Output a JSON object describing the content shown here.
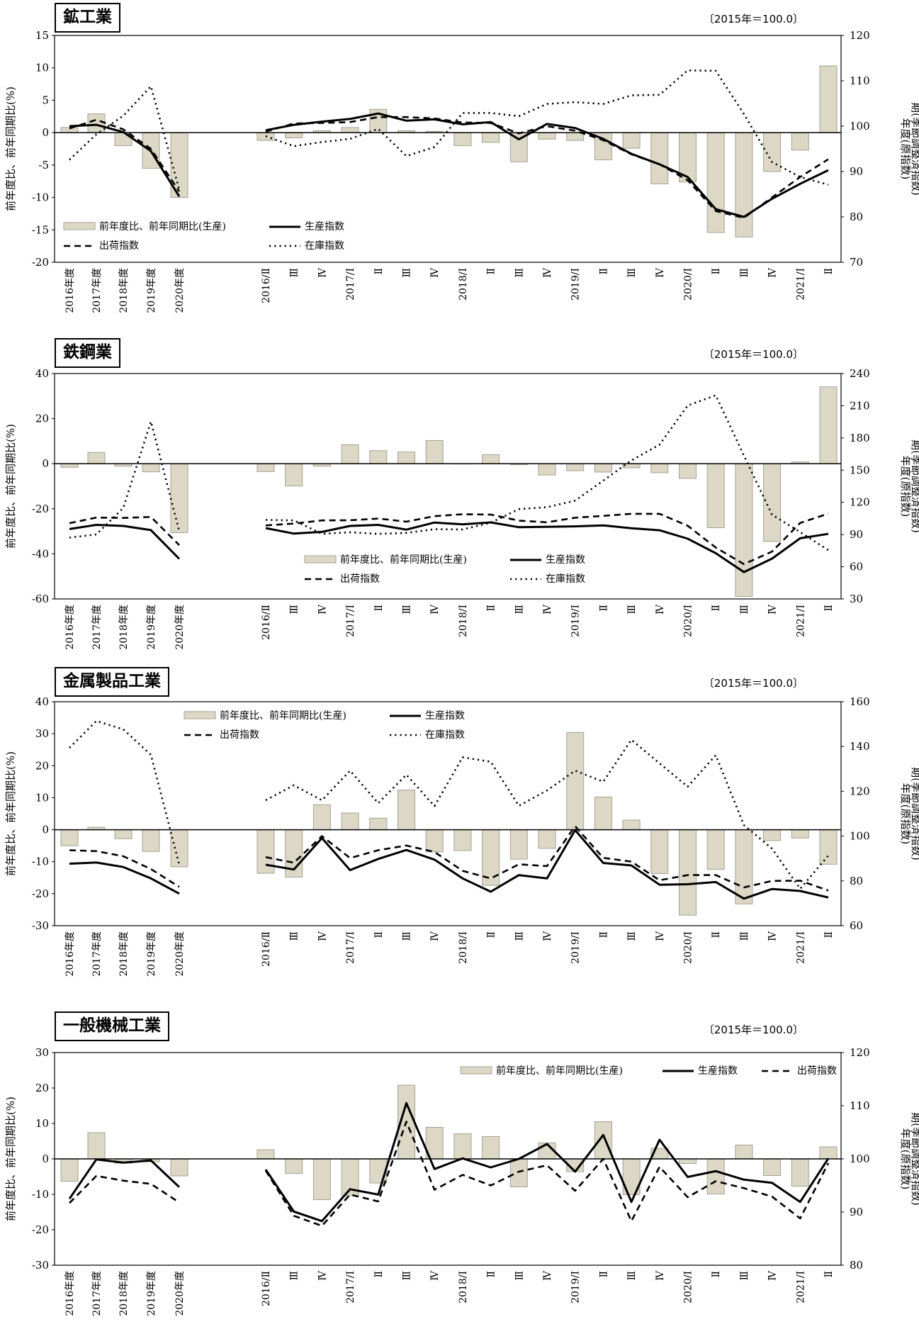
{
  "base_note": "〔2015年＝100.0〕",
  "legend_labels": {
    "bar": "前年度比、前年同期比(生産)",
    "production": "生産指数",
    "shipment": "出荷指数",
    "inventory": "在庫指数"
  },
  "axis_labels": {
    "left": "前年度比、前年同期比(%)",
    "right_line1": "年度(原指数)",
    "right_line2": "期(季節調整済指数)"
  },
  "categories_annual": [
    "2016年度",
    "2017年度",
    "2018年度",
    "2019年度",
    "2020年度"
  ],
  "categories_quarterly": [
    "2016/Ⅱ",
    "Ⅲ",
    "Ⅳ",
    "2017/Ⅰ",
    "Ⅱ",
    "Ⅲ",
    "Ⅳ",
    "2018/Ⅰ",
    "Ⅱ",
    "Ⅲ",
    "Ⅳ",
    "2019/Ⅰ",
    "Ⅱ",
    "Ⅲ",
    "Ⅳ",
    "2020/Ⅰ",
    "Ⅱ",
    "Ⅲ",
    "Ⅳ",
    "2021/Ⅰ",
    "Ⅱ"
  ],
  "chart_data": [
    {
      "type": "bar",
      "title": "鉱工業",
      "left_ylim": [
        -20,
        15
      ],
      "left_ticks": [
        -20,
        -15,
        -10,
        -5,
        0,
        5,
        10,
        15
      ],
      "right_ylim": [
        70,
        120
      ],
      "right_ticks": [
        70,
        80,
        90,
        100,
        110,
        120
      ],
      "legend_placement": "bottom-left",
      "bar_annual": [
        0.8,
        2.9,
        -2.0,
        -5.5,
        -10.0
      ],
      "bar_quarterly": [
        -1.2,
        -0.8,
        0.3,
        0.8,
        3.6,
        0.3,
        0.2,
        -2.0,
        -1.5,
        -4.5,
        -1.0,
        -1.2,
        -4.2,
        -2.4,
        -7.9,
        -7.6,
        -15.4,
        -16.1,
        -6.0,
        -2.7,
        10.3
      ],
      "production_annual": [
        100.0,
        100.3,
        98.7,
        94.5,
        84.5
      ],
      "production_quarterly": [
        99.1,
        100.3,
        101.0,
        101.6,
        102.8,
        101.2,
        101.5,
        100.4,
        100.9,
        97.1,
        100.5,
        99.6,
        97.2,
        93.9,
        91.6,
        88.8,
        81.7,
        80.0,
        84.0,
        87.3,
        90.3
      ],
      "shipment_annual": [
        99.5,
        101.4,
        99.3,
        95.0,
        85.6
      ],
      "shipment_quarterly": [
        98.8,
        100.6,
        100.7,
        100.9,
        102.0,
        102.0,
        101.7,
        100.8,
        100.7,
        98.4,
        100.0,
        99.0,
        96.9,
        93.8,
        91.6,
        88.1,
        81.3,
        79.8,
        84.3,
        88.8,
        92.7
      ],
      "inventory_annual": [
        92.6,
        98.2,
        102.3,
        108.8,
        86.0
      ],
      "inventory_quarterly": [
        97.8,
        95.6,
        96.5,
        97.2,
        99.4,
        93.4,
        95.4,
        102.9,
        102.9,
        102.2,
        104.9,
        105.3,
        104.9,
        106.8,
        106.9,
        112.3,
        112.2,
        102.7,
        92.1,
        88.8,
        87.1
      ]
    },
    {
      "type": "bar",
      "title": "鉄鋼業",
      "left_ylim": [
        -60,
        40
      ],
      "left_ticks": [
        -60,
        -40,
        -20,
        0,
        20,
        40
      ],
      "right_ylim": [
        30,
        240
      ],
      "right_ticks": [
        30,
        60,
        90,
        120,
        150,
        180,
        210,
        240
      ],
      "legend_placement": "bottom-center",
      "bar_annual": [
        -1.6,
        5.0,
        -1.1,
        -3.6,
        -30.6
      ],
      "bar_quarterly": [
        -3.5,
        -9.9,
        -1.1,
        8.4,
        5.8,
        5.2,
        10.3,
        0.0,
        4.0,
        -0.4,
        -5.0,
        -3.1,
        -3.7,
        -1.8,
        -4.0,
        -6.5,
        -28.4,
        -58.9,
        -34.5,
        0.8,
        34.1
      ],
      "production_annual": [
        95.1,
        99.0,
        98.0,
        94.1,
        67.3
      ],
      "production_quarterly": [
        96.0,
        90.9,
        92.5,
        98.0,
        99.0,
        94.6,
        101.2,
        99.5,
        101.3,
        96.8,
        97.2,
        97.6,
        98.5,
        95.9,
        94.0,
        86.1,
        72.6,
        55.0,
        67.6,
        86.5,
        90.6
      ],
      "shipment_annual": [
        100.6,
        105.8,
        105.5,
        106.4,
        80.1
      ],
      "shipment_quarterly": [
        98.5,
        100.2,
        103.2,
        103.3,
        104.9,
        102.0,
        107.1,
        108.9,
        108.6,
        103.0,
        101.4,
        105.7,
        107.4,
        109.3,
        109.3,
        98.2,
        77.9,
        62.4,
        74.1,
        100.8,
        109.5
      ],
      "inventory_annual": [
        87.1,
        90.1,
        114.8,
        195.3,
        93.2
      ],
      "inventory_quarterly": [
        103.6,
        103.2,
        90.6,
        92.1,
        90.6,
        91.5,
        95.0,
        94.7,
        101.0,
        113.7,
        115.5,
        121.6,
        140.2,
        159.1,
        173.7,
        210.2,
        219.7,
        163.5,
        108.5,
        92.3,
        75.5
      ]
    },
    {
      "type": "bar",
      "title": "金属製品工業",
      "left_ylim": [
        -30,
        40
      ],
      "left_ticks": [
        -30,
        -20,
        -10,
        0,
        10,
        20,
        30,
        40
      ],
      "right_ylim": [
        60,
        160
      ],
      "right_ticks": [
        60,
        80,
        100,
        120,
        140,
        160
      ],
      "legend_placement": "top-left",
      "bar_annual": [
        -5.0,
        0.8,
        -2.8,
        -6.8,
        -11.6
      ],
      "bar_quarterly": [
        -13.6,
        -14.8,
        7.8,
        5.2,
        3.6,
        12.4,
        -6.9,
        -6.5,
        -17.4,
        -9.2,
        -5.8,
        30.4,
        10.2,
        3.0,
        -13.7,
        -26.7,
        -12.4,
        -23.2,
        -3.4,
        -2.6,
        -10.8
      ],
      "production_annual": [
        87.7,
        88.2,
        86.2,
        81.1,
        74.3
      ],
      "production_quarterly": [
        87.2,
        85.1,
        99.1,
        84.8,
        89.8,
        93.8,
        89.5,
        81.1,
        75.2,
        82.6,
        81.1,
        102.7,
        88.0,
        86.9,
        78.3,
        78.5,
        79.5,
        72.1,
        76.4,
        75.5,
        72.6
      ],
      "shipment_annual": [
        93.7,
        93.3,
        91.0,
        85.3,
        77.3
      ],
      "shipment_quarterly": [
        90.6,
        88.1,
        100.0,
        90.2,
        93.7,
        95.8,
        92.9,
        84.5,
        81.1,
        87.4,
        86.6,
        104.4,
        90.3,
        88.6,
        80.3,
        82.6,
        82.6,
        77.1,
        80.0,
        80.1,
        75.7
      ],
      "inventory_annual": [
        139.4,
        151.4,
        147.7,
        136.3,
        87.2
      ],
      "inventory_quarterly": [
        116.0,
        122.7,
        116.0,
        129.2,
        114.7,
        127.4,
        113.4,
        135.2,
        133.2,
        113.5,
        120.4,
        129.2,
        124.3,
        143.0,
        132.5,
        122.1,
        136.1,
        104.9,
        94.4,
        76.5,
        91.3
      ]
    },
    {
      "type": "bar",
      "title": "一般機械工業",
      "left_ylim": [
        -30,
        30
      ],
      "left_ticks": [
        -30,
        -20,
        -10,
        0,
        10,
        20,
        30
      ],
      "right_ylim": [
        80,
        120
      ],
      "right_ticks": [
        80,
        90,
        100,
        110,
        120
      ],
      "legend_placement": "top-right",
      "bar_annual": [
        -6.3,
        7.4,
        -1.2,
        -0.8,
        -4.8
      ],
      "bar_quarterly": [
        2.6,
        -4.1,
        -11.5,
        -10.4,
        -6.8,
        20.8,
        8.9,
        7.1,
        6.3,
        -7.9,
        4.5,
        -3.6,
        10.5,
        -10.1,
        3.0,
        -1.3,
        -9.9,
        3.9,
        -4.7,
        -7.7,
        3.4
      ],
      "production_annual": [
        92.5,
        99.9,
        99.3,
        99.7,
        94.7
      ],
      "production_quarterly": [
        98.0,
        90.1,
        88.3,
        94.3,
        93.3,
        110.5,
        98.1,
        100.1,
        98.4,
        100.0,
        102.8,
        97.6,
        104.5,
        91.9,
        103.6,
        96.6,
        97.7,
        96.1,
        95.5,
        91.9,
        100.1
      ],
      "shipment_annual": [
        91.7,
        96.8,
        95.9,
        95.3,
        91.8
      ],
      "shipment_quarterly": [
        97.8,
        89.3,
        87.4,
        93.3,
        92.0,
        107.0,
        94.2,
        97.0,
        95.0,
        97.6,
        98.8,
        94.0,
        100.0,
        88.3,
        98.5,
        92.8,
        95.8,
        94.5,
        92.9,
        88.8,
        99.2
      ]
    }
  ]
}
